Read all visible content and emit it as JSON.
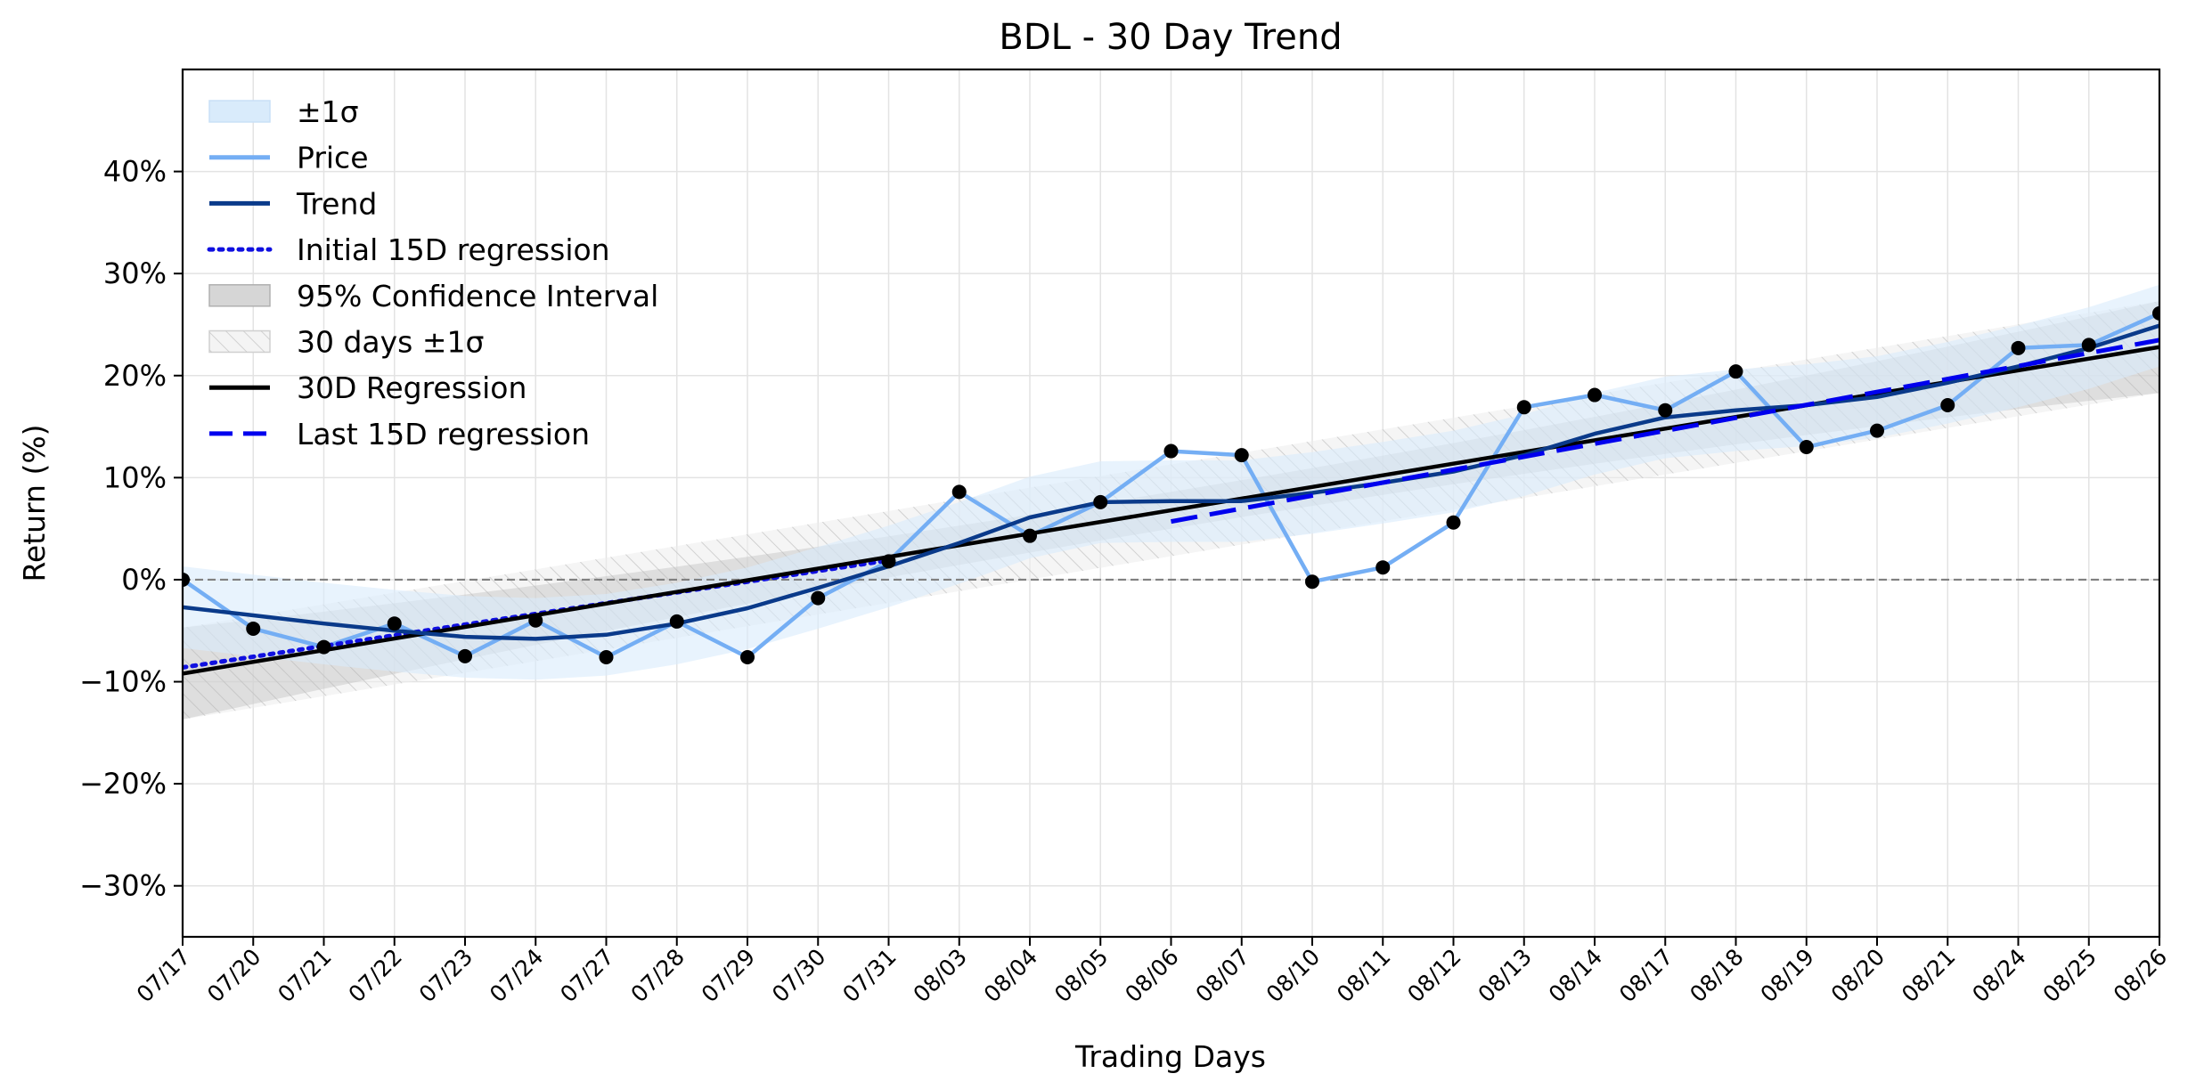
{
  "chart_data": {
    "type": "line",
    "title": "BDL - 30 Day Trend",
    "xlabel": "Trading Days",
    "ylabel": "Return (%)",
    "ylim": [
      -35,
      50
    ],
    "yticks": [
      -30,
      -20,
      -10,
      0,
      10,
      20,
      30,
      40
    ],
    "ytick_labels": [
      "−30%",
      "−20%",
      "−10%",
      "0%",
      "10%",
      "20%",
      "30%",
      "40%"
    ],
    "grid": true,
    "legend_position": "top-left",
    "categories": [
      "07/17",
      "07/20",
      "07/21",
      "07/22",
      "07/23",
      "07/24",
      "07/27",
      "07/28",
      "07/29",
      "07/30",
      "07/31",
      "08/03",
      "08/04",
      "08/05",
      "08/06",
      "08/07",
      "08/10",
      "08/11",
      "08/12",
      "08/13",
      "08/14",
      "08/17",
      "08/18",
      "08/19",
      "08/20",
      "08/21",
      "08/24",
      "08/25",
      "08/26"
    ],
    "price": [
      0.0,
      -4.8,
      -6.6,
      -4.3,
      -7.5,
      -4.0,
      -7.6,
      -4.1,
      -7.6,
      -1.8,
      1.8,
      8.6,
      4.3,
      7.6,
      12.6,
      12.2,
      -0.2,
      1.2,
      5.6,
      16.9,
      18.1,
      16.6,
      20.4,
      13.0,
      14.6,
      17.1,
      22.7,
      23.0,
      26.1
    ],
    "trend": [
      -2.7,
      -3.5,
      -4.3,
      -5.0,
      -5.6,
      -5.8,
      -5.4,
      -4.3,
      -2.8,
      -0.8,
      1.3,
      3.6,
      6.1,
      7.6,
      7.7,
      7.7,
      8.5,
      9.5,
      10.6,
      12.2,
      14.3,
      15.9,
      16.6,
      17.1,
      17.9,
      19.3,
      20.9,
      22.7,
      24.9
    ],
    "sigma": 4.0,
    "regression_30d": {
      "start": -9.2,
      "slope": 1.1429
    },
    "confidence_interval_halfwidth": [
      4.5,
      1.8,
      4.5
    ],
    "band_30d_sigma": 4.5,
    "initial_15d_regression": {
      "from_index": 0,
      "to_index": 10,
      "start": -8.6,
      "slope": 1.05
    },
    "last_15d_regression": {
      "from_index": 14,
      "to_index": 28,
      "start": 5.7,
      "slope": 1.27
    },
    "zero_line": 0,
    "legend": [
      "±1σ",
      "Price",
      "Trend",
      "Initial 15D regression",
      "95% Confidence Interval",
      "30 days ±1σ",
      "30D Regression",
      "Last 15D regression"
    ],
    "colors": {
      "price": "#74aef4",
      "trend": "#0a3a8a",
      "sigma_band": "#d9ebfb",
      "initial_reg": "#1010e0",
      "ci": "#b8b8b8",
      "band30": "#c8c8c8",
      "regression": "#000000",
      "last_reg": "#0000ee",
      "markers": "#000000"
    }
  }
}
